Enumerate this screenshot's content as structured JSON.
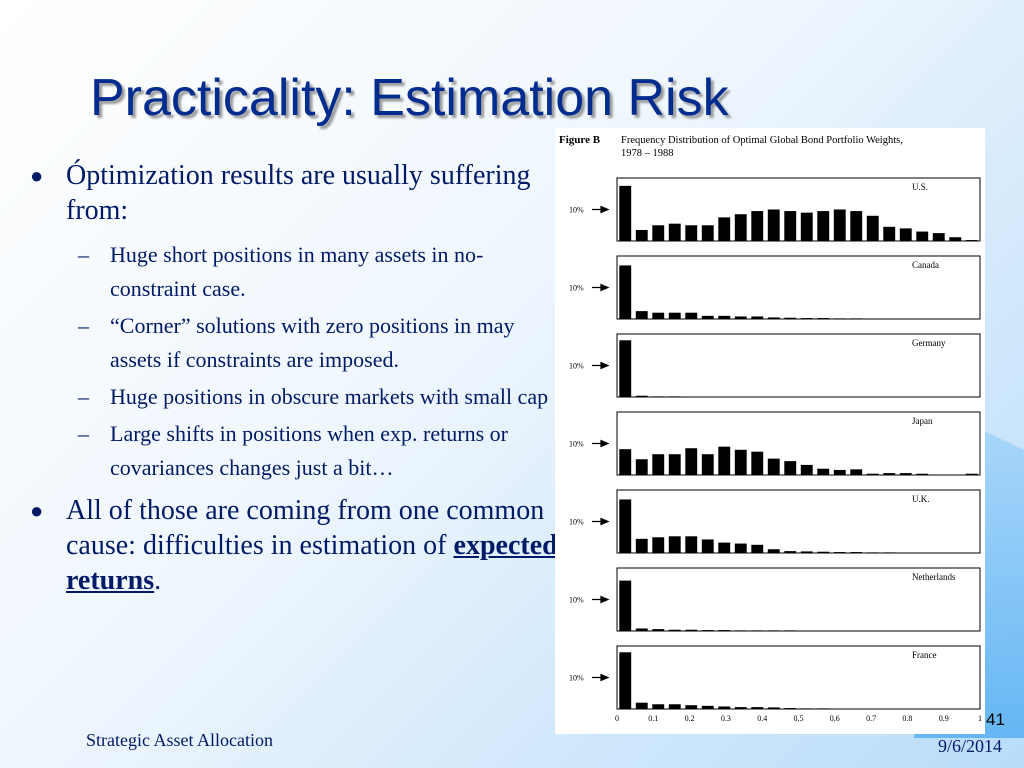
{
  "slide": {
    "title": "Practicality: Estimation Risk",
    "bullet1": "Óptimization results are usually suffering from:",
    "subs": [
      "Huge short positions in many assets in no-constraint case.",
      "“Corner” solutions with zero positions in may assets if constraints are imposed.",
      "Huge positions in obscure markets with small cap",
      "Large shifts in positions when exp. returns or covariances changes just a bit…"
    ],
    "bullet2_pre": "All of those are coming from one common cause: difficulties in estimation of ",
    "bullet2_emph": "expected returns",
    "bullet2_post": ".",
    "footer_left": "Strategic Asset Allocation",
    "page_num": "41",
    "date": "9/6/2014"
  },
  "chart_data": {
    "type": "bar",
    "figure_label": "Figure B",
    "title": "Frequency Distribution of Optimal Global Bond Portfolio Weights, 1978 – 1988",
    "x_ticks": [
      "0",
      "0.1",
      "0.2",
      "0.3",
      "0.4",
      "0.5",
      "0.6",
      "0.7",
      "0.8",
      "0.9",
      "1"
    ],
    "reference_label": "10%",
    "ylim": [
      0,
      20
    ],
    "panels": [
      {
        "name": "U.S.",
        "ref_pct": 10,
        "values": [
          17.5,
          3.5,
          5.0,
          5.5,
          5.0,
          5.0,
          7.5,
          8.5,
          9.5,
          10.0,
          9.5,
          9.0,
          9.5,
          10.0,
          9.5,
          8.0,
          4.5,
          4.0,
          3.0,
          2.5,
          1.2,
          0.3
        ]
      },
      {
        "name": "Canada",
        "ref_pct": 10,
        "values": [
          17.0,
          2.5,
          2.0,
          2.0,
          2.0,
          1.0,
          1.0,
          0.8,
          0.8,
          0.5,
          0.4,
          0.3,
          0.3,
          0.2,
          0.2,
          0.1
        ]
      },
      {
        "name": "Germany",
        "ref_pct": 10,
        "values": [
          18.0,
          0.4,
          0.2,
          0.2,
          0.1
        ]
      },
      {
        "name": "Japan",
        "ref_pct": 10,
        "values": [
          8.2,
          5.0,
          6.6,
          6.6,
          8.5,
          6.6,
          9.0,
          8.0,
          7.4,
          5.2,
          4.4,
          3.2,
          2.0,
          1.6,
          1.8,
          0.4,
          0.6,
          0.6,
          0.4,
          0,
          0,
          0.4
        ]
      },
      {
        "name": "U.K.",
        "ref_pct": 10,
        "values": [
          17.0,
          4.5,
          5.0,
          5.3,
          5.3,
          4.3,
          3.3,
          3.0,
          2.6,
          1.2,
          0.6,
          0.5,
          0.4,
          0.3,
          0.3,
          0.2,
          0.2
        ]
      },
      {
        "name": "Netherlands",
        "ref_pct": 10,
        "values": [
          16.0,
          0.8,
          0.6,
          0.4,
          0.4,
          0.3,
          0.3,
          0.2,
          0.2,
          0.2,
          0.2,
          0.1
        ]
      },
      {
        "name": "France",
        "ref_pct": 10,
        "values": [
          18.0,
          2.0,
          1.5,
          1.5,
          1.2,
          1.0,
          0.8,
          0.6,
          0.6,
          0.5,
          0.3,
          0.2,
          0.2,
          0.1
        ]
      }
    ]
  }
}
